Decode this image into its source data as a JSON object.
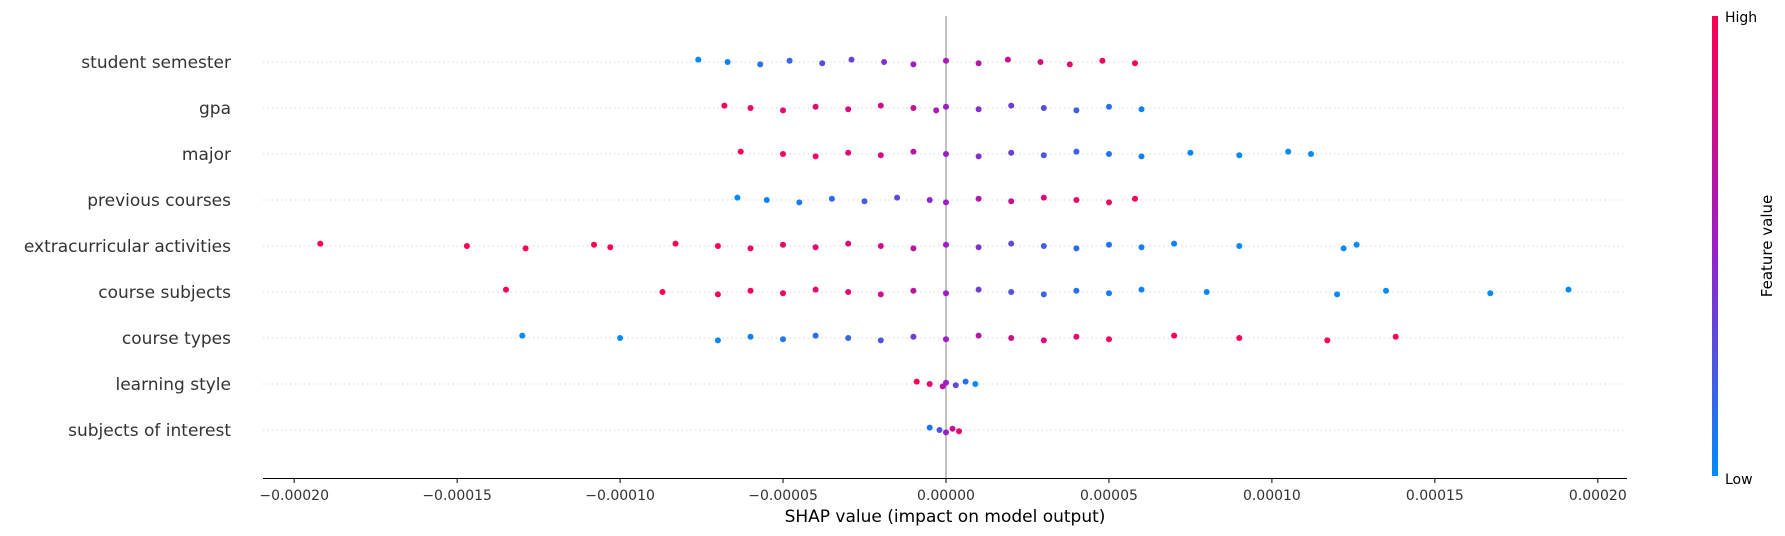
{
  "chart_data": {
    "type": "scatter",
    "subtype": "shap-beeswarm",
    "xlabel": "SHAP value (impact on model output)",
    "xlim": [
      -0.00021,
      0.00021
    ],
    "xticks": [
      -0.0002,
      -0.00015,
      -0.0001,
      -5e-05,
      0.0,
      5e-05,
      0.0001,
      0.00015,
      0.0002
    ],
    "xtick_labels": [
      "−0.00020",
      "−0.00015",
      "−0.00010",
      "−0.00005",
      "0.00000",
      "0.00005",
      "0.00010",
      "0.00015",
      "0.00020"
    ],
    "features": [
      "student semester",
      "gpa",
      "major",
      "previous courses",
      "extracurricular activities",
      "course subjects",
      "course types",
      "learning style",
      "subjects of interest"
    ],
    "colorbar": {
      "title": "Feature value",
      "high_label": "High",
      "low_label": "Low",
      "high_color": "#ff0052",
      "mid_color": "#9b1ec8",
      "low_color": "#008bfb"
    },
    "gridlines": "horizontal dotted per feature",
    "series": [
      {
        "feature": "student semester",
        "points": [
          [
            -7.6e-05,
            0.0
          ],
          [
            -6.7e-05,
            0.05
          ],
          [
            -5.7e-05,
            0.12
          ],
          [
            -4.8e-05,
            0.18
          ],
          [
            -3.8e-05,
            0.27
          ],
          [
            -2.9e-05,
            0.35
          ],
          [
            -1.9e-05,
            0.42
          ],
          [
            -1e-05,
            0.5
          ],
          [
            0.0,
            0.57
          ],
          [
            1e-05,
            0.65
          ],
          [
            1.9e-05,
            0.73
          ],
          [
            2.9e-05,
            0.8
          ],
          [
            3.8e-05,
            0.88
          ],
          [
            4.8e-05,
            0.95
          ],
          [
            5.8e-05,
            1.0
          ]
        ]
      },
      {
        "feature": "gpa",
        "points": [
          [
            -6.8e-05,
            0.95
          ],
          [
            -6e-05,
            0.92
          ],
          [
            -5e-05,
            0.88
          ],
          [
            -4e-05,
            0.85
          ],
          [
            -3e-05,
            0.8
          ],
          [
            -2e-05,
            0.78
          ],
          [
            -1e-05,
            0.72
          ],
          [
            -3e-06,
            0.6
          ],
          [
            0.0,
            0.5
          ],
          [
            1e-05,
            0.42
          ],
          [
            2e-05,
            0.35
          ],
          [
            3e-05,
            0.28
          ],
          [
            4e-05,
            0.2
          ],
          [
            5e-05,
            0.12
          ],
          [
            6e-05,
            0.05
          ]
        ]
      },
      {
        "feature": "major",
        "points": [
          [
            -6.3e-05,
            0.97
          ],
          [
            -5e-05,
            0.93
          ],
          [
            -4e-05,
            0.9
          ],
          [
            -3e-05,
            0.85
          ],
          [
            -2e-05,
            0.78
          ],
          [
            -1e-05,
            0.65
          ],
          [
            0.0,
            0.5
          ],
          [
            1e-05,
            0.42
          ],
          [
            2e-05,
            0.35
          ],
          [
            3e-05,
            0.25
          ],
          [
            4e-05,
            0.18
          ],
          [
            5e-05,
            0.1
          ],
          [
            6e-05,
            0.05
          ],
          [
            7.5e-05,
            0.02
          ],
          [
            9e-05,
            0.0
          ],
          [
            0.000105,
            0.0
          ],
          [
            0.000112,
            0.0
          ]
        ]
      },
      {
        "feature": "previous courses",
        "points": [
          [
            -6.4e-05,
            0.0
          ],
          [
            -5.5e-05,
            0.03
          ],
          [
            -4.5e-05,
            0.08
          ],
          [
            -3.5e-05,
            0.15
          ],
          [
            -2.5e-05,
            0.22
          ],
          [
            -1.5e-05,
            0.3
          ],
          [
            -5e-06,
            0.45
          ],
          [
            0.0,
            0.5
          ],
          [
            1e-05,
            0.62
          ],
          [
            2e-05,
            0.72
          ],
          [
            3e-05,
            0.8
          ],
          [
            4e-05,
            0.88
          ],
          [
            5e-05,
            0.93
          ],
          [
            5.8e-05,
            0.97
          ]
        ]
      },
      {
        "feature": "extracurricular activities",
        "points": [
          [
            -0.000192,
            1.0
          ],
          [
            -0.000147,
            1.0
          ],
          [
            -0.000129,
            1.0
          ],
          [
            -0.000108,
            1.0
          ],
          [
            -0.000103,
            1.0
          ],
          [
            -8.3e-05,
            0.98
          ],
          [
            -7e-05,
            0.96
          ],
          [
            -6e-05,
            0.93
          ],
          [
            -5e-05,
            0.9
          ],
          [
            -4e-05,
            0.87
          ],
          [
            -3e-05,
            0.82
          ],
          [
            -2e-05,
            0.76
          ],
          [
            -1e-05,
            0.66
          ],
          [
            0.0,
            0.5
          ],
          [
            1e-05,
            0.4
          ],
          [
            2e-05,
            0.3
          ],
          [
            3e-05,
            0.22
          ],
          [
            4e-05,
            0.16
          ],
          [
            5e-05,
            0.1
          ],
          [
            6e-05,
            0.05
          ],
          [
            7e-05,
            0.03
          ],
          [
            9e-05,
            0.01
          ],
          [
            0.000122,
            0.0
          ],
          [
            0.000126,
            0.0
          ]
        ]
      },
      {
        "feature": "course subjects",
        "points": [
          [
            -0.000135,
            1.0
          ],
          [
            -8.7e-05,
            1.0
          ],
          [
            -7e-05,
            0.98
          ],
          [
            -6e-05,
            0.95
          ],
          [
            -5e-05,
            0.92
          ],
          [
            -4e-05,
            0.88
          ],
          [
            -3e-05,
            0.82
          ],
          [
            -2e-05,
            0.75
          ],
          [
            -1e-05,
            0.66
          ],
          [
            0.0,
            0.5
          ],
          [
            1e-05,
            0.35
          ],
          [
            2e-05,
            0.25
          ],
          [
            3e-05,
            0.18
          ],
          [
            4e-05,
            0.12
          ],
          [
            5e-05,
            0.08
          ],
          [
            6e-05,
            0.04
          ],
          [
            8e-05,
            0.02
          ],
          [
            0.00012,
            0.0
          ],
          [
            0.000135,
            0.0
          ],
          [
            0.000167,
            0.0
          ],
          [
            0.000191,
            0.0
          ]
        ]
      },
      {
        "feature": "course types",
        "points": [
          [
            -0.00013,
            0.0
          ],
          [
            -0.0001,
            0.0
          ],
          [
            -7e-05,
            0.02
          ],
          [
            -6e-05,
            0.05
          ],
          [
            -5e-05,
            0.08
          ],
          [
            -4e-05,
            0.12
          ],
          [
            -3e-05,
            0.18
          ],
          [
            -2e-05,
            0.25
          ],
          [
            -1e-05,
            0.35
          ],
          [
            0.0,
            0.5
          ],
          [
            1e-05,
            0.65
          ],
          [
            2e-05,
            0.75
          ],
          [
            3e-05,
            0.82
          ],
          [
            4e-05,
            0.88
          ],
          [
            5e-05,
            0.93
          ],
          [
            7e-05,
            0.97
          ],
          [
            9e-05,
            0.99
          ],
          [
            0.000117,
            1.0
          ],
          [
            0.000138,
            1.0
          ]
        ]
      },
      {
        "feature": "learning style",
        "points": [
          [
            -9e-06,
            1.0
          ],
          [
            -5e-06,
            0.88
          ],
          [
            -1e-06,
            0.65
          ],
          [
            0.0,
            0.5
          ],
          [
            3e-06,
            0.3
          ],
          [
            6e-06,
            0.12
          ],
          [
            9e-06,
            0.0
          ]
        ]
      },
      {
        "feature": "subjects of interest",
        "points": [
          [
            -5e-06,
            0.1
          ],
          [
            -2e-06,
            0.25
          ],
          [
            0.0,
            0.5
          ],
          [
            2e-06,
            0.75
          ],
          [
            4e-06,
            0.9
          ]
        ]
      }
    ]
  }
}
